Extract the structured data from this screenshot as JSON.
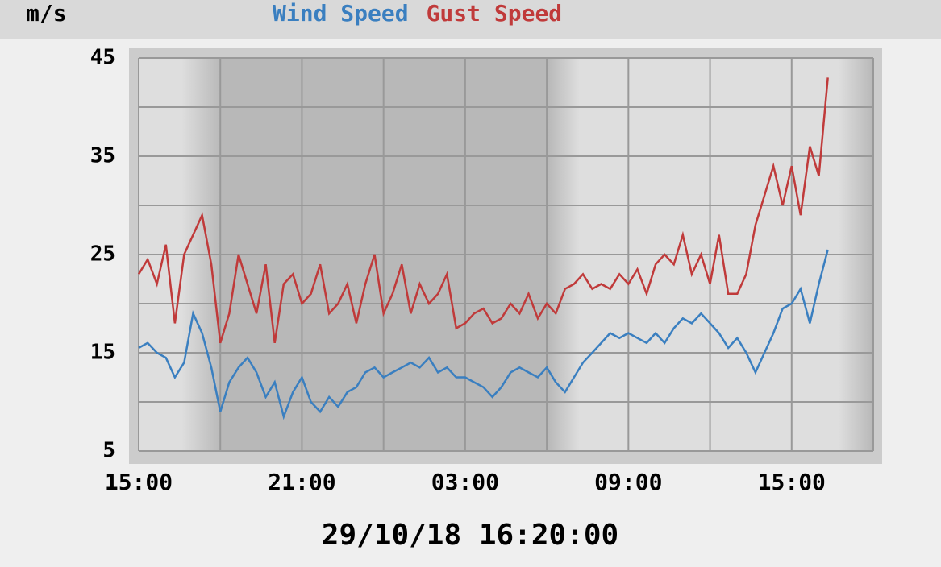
{
  "chart_data": {
    "type": "line",
    "title": "29/10/18 16:20:00",
    "y_label": "m/s",
    "x": [
      0,
      0.33,
      0.67,
      1,
      1.33,
      1.67,
      2,
      2.33,
      2.67,
      3,
      3.33,
      3.67,
      4,
      4.33,
      4.67,
      5,
      5.33,
      5.67,
      6,
      6.33,
      6.67,
      7,
      7.33,
      7.67,
      8,
      8.33,
      8.67,
      9,
      9.33,
      9.67,
      10,
      10.33,
      10.67,
      11,
      11.33,
      11.67,
      12,
      12.33,
      12.67,
      13,
      13.33,
      13.67,
      14,
      14.33,
      14.67,
      15,
      15.33,
      15.67,
      16,
      16.33,
      16.67,
      17,
      17.33,
      17.67,
      18,
      18.33,
      18.67,
      19,
      19.33,
      19.67,
      20,
      20.33,
      20.67,
      21,
      21.33,
      21.67,
      22,
      22.33,
      22.67,
      23,
      23.33,
      23.67,
      24,
      24.33,
      24.67,
      25,
      25.33
    ],
    "series": [
      {
        "name": "Wind Speed",
        "color": "#3a7fc0",
        "values": [
          15.5,
          16,
          15,
          14.5,
          12.5,
          14,
          19,
          17,
          13.5,
          9,
          12,
          13.5,
          14.5,
          13,
          10.5,
          12,
          8.5,
          11,
          12.5,
          10,
          9,
          10.5,
          9.5,
          11,
          11.5,
          13,
          13.5,
          12.5,
          13,
          13.5,
          14,
          13.5,
          14.5,
          13,
          13.5,
          12.5,
          12.5,
          12,
          11.5,
          10.5,
          11.5,
          13,
          13.5,
          13,
          12.5,
          13.5,
          12,
          11,
          12.5,
          14,
          15,
          16,
          17,
          16.5,
          17,
          16.5,
          16,
          17,
          16,
          17.5,
          18.5,
          18,
          19,
          18,
          17,
          15.5,
          16.5,
          15,
          13,
          15,
          17,
          19.5,
          20,
          21.5,
          18,
          22,
          25.5
        ]
      },
      {
        "name": "Gust Speed",
        "color": "#c03a3a",
        "values": [
          23,
          24.5,
          22,
          26,
          18,
          25,
          27,
          29,
          24,
          16,
          19,
          25,
          22,
          19,
          24,
          16,
          22,
          23,
          20,
          21,
          24,
          19,
          20,
          22,
          18,
          22,
          25,
          19,
          21,
          24,
          19,
          22,
          20,
          21,
          23,
          17.5,
          18,
          19,
          19.5,
          18,
          18.5,
          20,
          19,
          21,
          18.5,
          20,
          19,
          21.5,
          22,
          23,
          21.5,
          22,
          21.5,
          23,
          22,
          23.5,
          21,
          24,
          25,
          24,
          27,
          23,
          25,
          22,
          27,
          21,
          21,
          23,
          28,
          31,
          34,
          30,
          34,
          29,
          36,
          33,
          43
        ]
      }
    ],
    "xlim": [
      0,
      27
    ],
    "xticks": [
      {
        "value": 0,
        "label": "15:00"
      },
      {
        "value": 6,
        "label": "21:00"
      },
      {
        "value": 12,
        "label": "03:00"
      },
      {
        "value": 18,
        "label": "09:00"
      },
      {
        "value": 24,
        "label": "15:00"
      }
    ],
    "xgrid": [
      3,
      9,
      15,
      21,
      27
    ],
    "ylim": [
      5,
      45
    ],
    "yticks": [
      5,
      15,
      25,
      35,
      45
    ],
    "ygrid": [
      10,
      20,
      30,
      40
    ],
    "grid": true
  }
}
